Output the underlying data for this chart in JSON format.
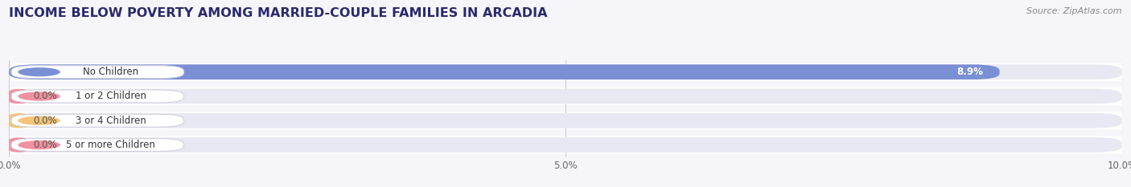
{
  "title": "INCOME BELOW POVERTY AMONG MARRIED-COUPLE FAMILIES IN ARCADIA",
  "source": "Source: ZipAtlas.com",
  "categories": [
    "No Children",
    "1 or 2 Children",
    "3 or 4 Children",
    "5 or more Children"
  ],
  "values": [
    8.9,
    0.0,
    0.0,
    0.0
  ],
  "bar_colors": [
    "#7b8fd4",
    "#f0919f",
    "#f5c47a",
    "#f0919f"
  ],
  "dot_colors": [
    "#7b8fd4",
    "#f0919f",
    "#f5c47a",
    "#f0919f"
  ],
  "value_inside_bar": [
    true,
    false,
    false,
    false
  ],
  "xlim_max": 10.0,
  "xtick_values": [
    0.0,
    5.0,
    10.0
  ],
  "xtick_labels": [
    "0.0%",
    "5.0%",
    "10.0%"
  ],
  "bg_color": "#f5f5fa",
  "row_bg_color": "#ffffff",
  "bar_bg_color": "#e8e8f2",
  "title_color": "#2a2a6a",
  "title_fontsize": 11.5,
  "label_fontsize": 8.5,
  "value_fontsize": 8.5,
  "source_fontsize": 8,
  "source_color": "#888888",
  "grid_color": "#ccccdd",
  "label_box_color": "#ffffff",
  "label_text_color": "#333333",
  "value_color_inside": "#ffffff",
  "value_color_outside": "#555555"
}
